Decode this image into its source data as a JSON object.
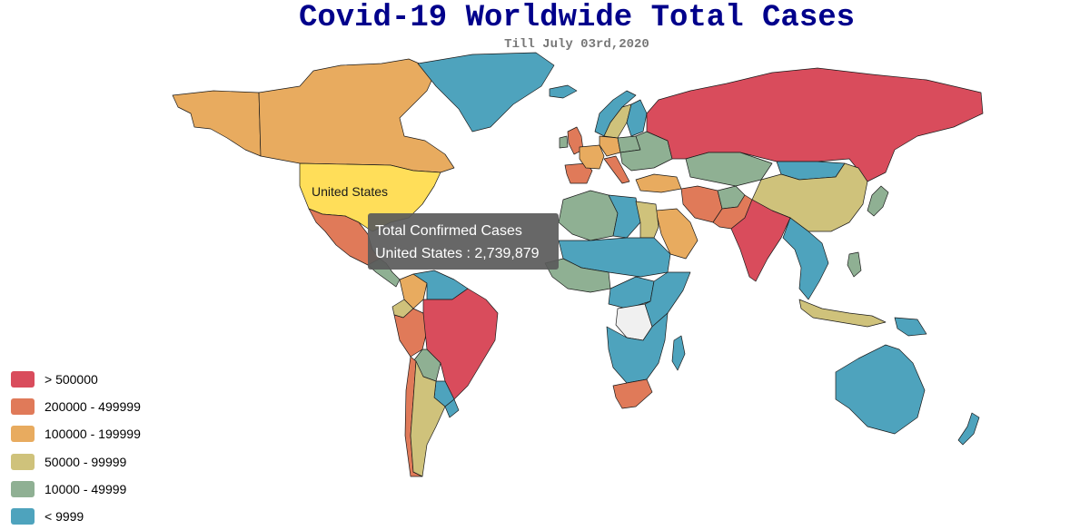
{
  "header": {
    "title": "Covid-19 Worldwide Total Cases",
    "subtitle": "Till July 03rd,2020"
  },
  "colors": {
    "ocean": "#ffffff",
    "no_data": "#f0f0f0",
    "border": "#1a1a1a"
  },
  "map": {
    "highlight_label": "United States"
  },
  "tooltip": {
    "title": "Total Confirmed Cases",
    "value": "United States : 2,739,879"
  },
  "legend": [
    {
      "label": "> 500000",
      "color": "#d94c5c"
    },
    {
      "label": "200000 - 499999",
      "color": "#e07a59"
    },
    {
      "label": "100000 - 199999",
      "color": "#e8ab5f"
    },
    {
      "label": "50000 - 99999",
      "color": "#cfc27b"
    },
    {
      "label": "10000 - 49999",
      "color": "#8fb093"
    },
    {
      "label": "< 9999",
      "color": "#4ea3bd"
    }
  ],
  "regions": [
    {
      "name": "Alaska",
      "bin": 2
    },
    {
      "name": "Canada",
      "bin": 2
    },
    {
      "name": "Greenland",
      "bin": 5
    },
    {
      "name": "United States",
      "bin": -1
    },
    {
      "name": "Mexico",
      "bin": 1
    },
    {
      "name": "Central America",
      "bin": 4
    },
    {
      "name": "Colombia",
      "bin": 2
    },
    {
      "name": "Venezuela",
      "bin": 5
    },
    {
      "name": "Ecuador",
      "bin": 3
    },
    {
      "name": "Peru",
      "bin": 1
    },
    {
      "name": "Brazil",
      "bin": 0
    },
    {
      "name": "Bolivia",
      "bin": 4
    },
    {
      "name": "Paraguay",
      "bin": 5
    },
    {
      "name": "Chile",
      "bin": 1
    },
    {
      "name": "Argentina",
      "bin": 3
    },
    {
      "name": "Uruguay",
      "bin": 5
    },
    {
      "name": "Iceland",
      "bin": 5
    },
    {
      "name": "United Kingdom",
      "bin": 1
    },
    {
      "name": "Ireland",
      "bin": 4
    },
    {
      "name": "Norway",
      "bin": 5
    },
    {
      "name": "Sweden",
      "bin": 3
    },
    {
      "name": "Finland",
      "bin": 5
    },
    {
      "name": "Spain",
      "bin": 1
    },
    {
      "name": "France",
      "bin": 2
    },
    {
      "name": "Germany",
      "bin": 2
    },
    {
      "name": "Italy",
      "bin": 1
    },
    {
      "name": "Poland",
      "bin": 4
    },
    {
      "name": "Eastern Europe",
      "bin": 4
    },
    {
      "name": "Turkey",
      "bin": 2
    },
    {
      "name": "Russia",
      "bin": 0
    },
    {
      "name": "Kazakhstan",
      "bin": 4
    },
    {
      "name": "Mongolia",
      "bin": 5
    },
    {
      "name": "China",
      "bin": 3
    },
    {
      "name": "Iran",
      "bin": 1
    },
    {
      "name": "Saudi Arabia",
      "bin": 2
    },
    {
      "name": "Afghanistan",
      "bin": 4
    },
    {
      "name": "Pakistan",
      "bin": 1
    },
    {
      "name": "India",
      "bin": 0
    },
    {
      "name": "Southeast Asia",
      "bin": 5
    },
    {
      "name": "Philippines",
      "bin": 4
    },
    {
      "name": "Indonesia",
      "bin": 3
    },
    {
      "name": "Japan",
      "bin": 4
    },
    {
      "name": "North Africa West",
      "bin": 4
    },
    {
      "name": "Libya",
      "bin": 5
    },
    {
      "name": "Egypt",
      "bin": 3
    },
    {
      "name": "Sahel",
      "bin": 5
    },
    {
      "name": "West Africa",
      "bin": 4
    },
    {
      "name": "Central Africa",
      "bin": 5
    },
    {
      "name": "Congo Basin",
      "bin": -2
    },
    {
      "name": "East Africa",
      "bin": 5
    },
    {
      "name": "Southern Africa",
      "bin": 5
    },
    {
      "name": "South Africa",
      "bin": 1
    },
    {
      "name": "Madagascar",
      "bin": 5
    },
    {
      "name": "Australia",
      "bin": 5
    },
    {
      "name": "New Zealand",
      "bin": 5
    },
    {
      "name": "Papua New Guinea",
      "bin": 5
    }
  ]
}
